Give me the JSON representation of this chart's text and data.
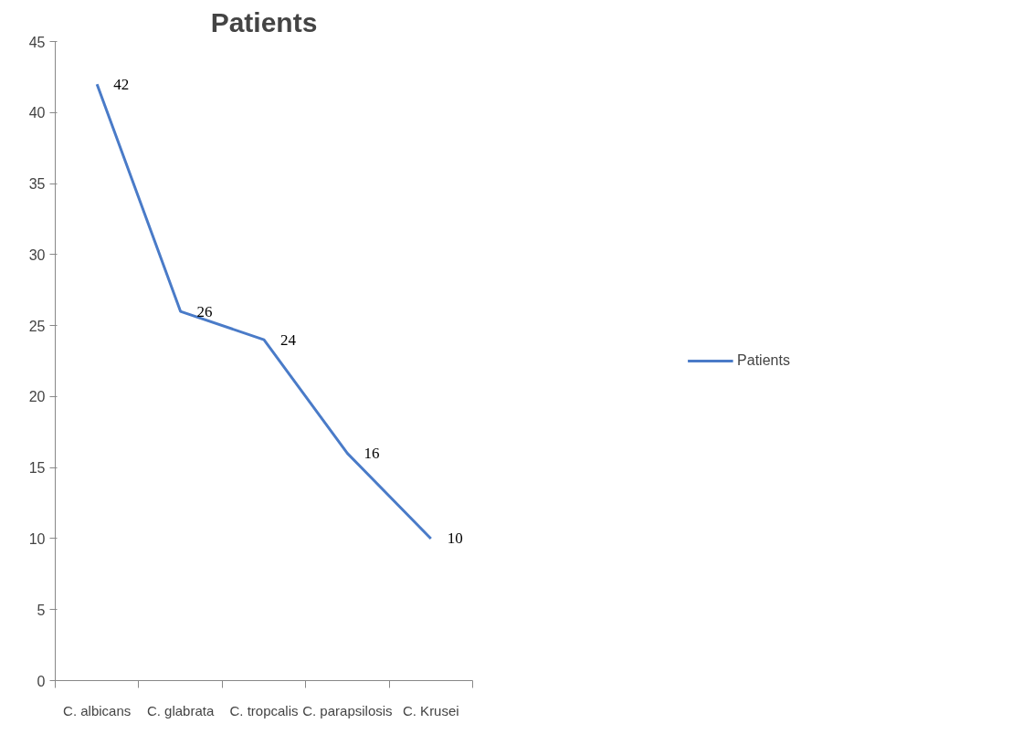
{
  "chart_data": {
    "type": "line",
    "title": "Patients",
    "categories": [
      "C. albicans",
      "C. glabrata",
      "C. tropcalis",
      "C. parapsilosis",
      "C. Krusei"
    ],
    "series": [
      {
        "name": "Patients",
        "color": "#4a7bc8",
        "values": [
          42,
          26,
          24,
          16,
          10
        ]
      }
    ],
    "ylim": [
      0,
      45
    ],
    "yticks": [
      0,
      5,
      10,
      15,
      20,
      25,
      30,
      35,
      40,
      45
    ],
    "data_labels": true,
    "grid": false,
    "legend": "right",
    "marker": "none",
    "line_style": "solid"
  }
}
